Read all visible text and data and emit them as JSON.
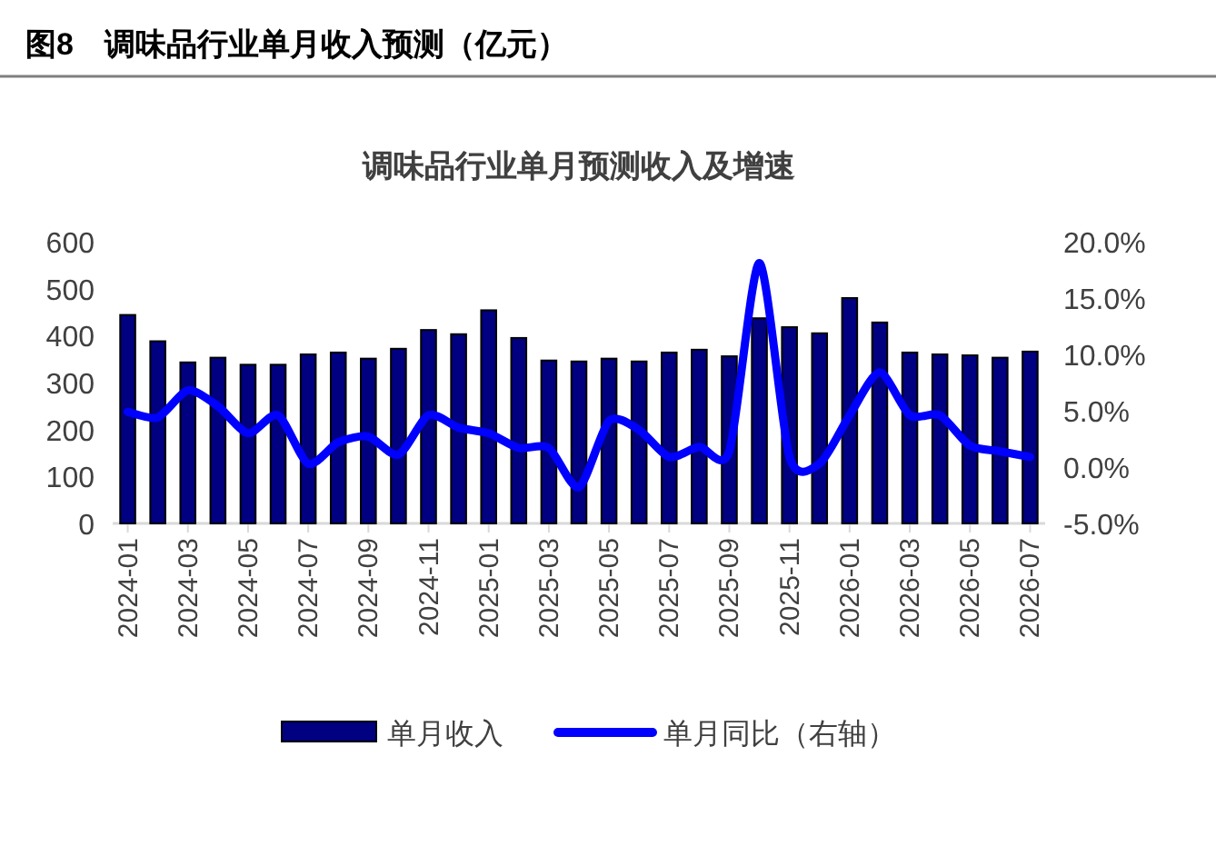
{
  "chart_data": {
    "type": "bar",
    "title": "图8　调味品行业单月收入预测（亿元）",
    "subtitle": "调味品行业单月预测收入及增速",
    "categories": [
      "2024-01",
      null,
      "2024-03",
      null,
      "2024-05",
      null,
      "2024-07",
      null,
      "2024-09",
      null,
      "2024-11",
      null,
      "2025-01",
      null,
      "2025-03",
      null,
      "2025-05",
      null,
      "2025-07",
      null,
      "2025-09",
      null,
      "2025-11",
      null,
      "2026-01",
      null,
      "2026-03",
      null,
      "2026-05",
      null,
      "2026-07"
    ],
    "series": [
      {
        "name": "单月收入",
        "color": "#000080",
        "values": [
          444,
          388,
          343,
          353,
          338,
          338,
          360,
          364,
          351,
          372,
          412,
          403,
          454,
          395,
          347,
          345,
          351,
          345,
          364,
          370,
          356,
          437,
          418,
          405,
          480,
          428,
          364,
          360,
          358,
          353,
          366
        ]
      },
      {
        "name": "单月同比（右轴）",
        "type": "line",
        "axis": "y2",
        "color": "#0000ff",
        "values": [
          4.9,
          4.4,
          6.8,
          5.4,
          3.0,
          4.6,
          0.3,
          2.2,
          2.7,
          1.1,
          4.6,
          3.5,
          3.0,
          1.7,
          1.7,
          -1.8,
          4.1,
          3.3,
          0.9,
          1.8,
          1.4,
          18.1,
          0.9,
          0.3,
          4.6,
          8.4,
          4.6,
          4.6,
          1.9,
          1.4,
          0.9
        ]
      }
    ],
    "ylim": [
      0,
      600
    ],
    "yticks": [
      0,
      100,
      200,
      300,
      400,
      500,
      600
    ],
    "y2lim": [
      -5,
      20
    ],
    "y2ticks": [
      {
        "value": -5,
        "label": "-5.0%"
      },
      {
        "value": 0,
        "label": "0.0%"
      },
      {
        "value": 5,
        "label": "5.0%"
      },
      {
        "value": 10,
        "label": "10.0%"
      },
      {
        "value": 15,
        "label": "15.0%"
      },
      {
        "value": 20,
        "label": "20.0%"
      }
    ],
    "legend": "bottom",
    "grid": false
  }
}
